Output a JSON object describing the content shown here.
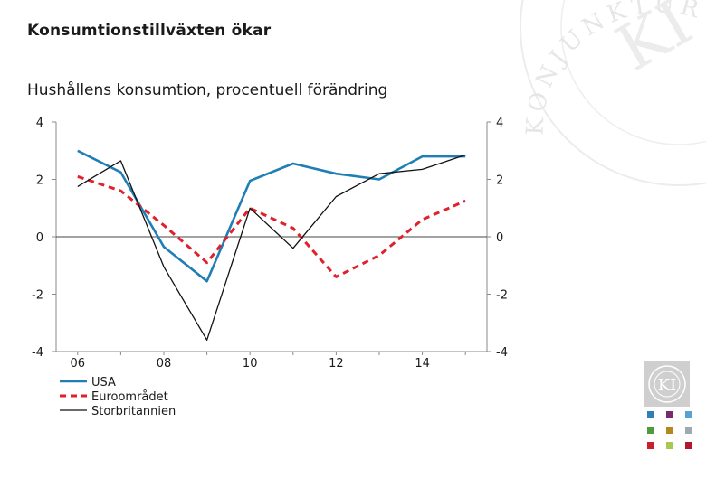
{
  "page": {
    "title": "Konsumtionstillväxten ökar",
    "subtitle": "Hushållens konsumtion, procentuell förändring"
  },
  "logo": {
    "watermark_text": "KONJUNKTURINSTITUTET",
    "monogram": "KI"
  },
  "palette": [
    "#2e7fb8",
    "#7a2a6a",
    "#5aa0d0",
    "#4f9a3a",
    "#b08a20",
    "#a0a8b0",
    "#c8202c",
    "#a8c850",
    "#b01830"
  ],
  "chart_data": {
    "type": "line",
    "title": "Hushållens konsumtion, procentuell förändring",
    "x": [
      2006,
      2007,
      2008,
      2009,
      2010,
      2011,
      2012,
      2013,
      2014,
      2015
    ],
    "x_tick_labels": [
      "06",
      "08",
      "10",
      "12",
      "14"
    ],
    "x_tick_values": [
      2006,
      2008,
      2010,
      2012,
      2014
    ],
    "xlim": [
      2005.5,
      2015.5
    ],
    "ylim": [
      -4,
      4
    ],
    "y_ticks": [
      -4,
      -2,
      0,
      2,
      4
    ],
    "y_tick_labels": [
      "-4",
      "-2",
      "0",
      "2",
      "4"
    ],
    "right_axis": true,
    "zero_line": true,
    "legend_position": "bottom-left",
    "series": [
      {
        "name": "USA",
        "color": "#1f7fb5",
        "style": "solid",
        "values": [
          3.0,
          2.25,
          -0.35,
          -1.55,
          1.95,
          2.55,
          2.2,
          2.0,
          2.8,
          2.8
        ]
      },
      {
        "name": "Euroområdet",
        "color": "#e0212b",
        "style": "dashed",
        "values": [
          2.1,
          1.6,
          0.4,
          -0.9,
          1.0,
          0.3,
          -1.4,
          -0.65,
          0.6,
          1.25
        ]
      },
      {
        "name": "Storbritannien",
        "color": "#111111",
        "style": "solid",
        "values": [
          1.75,
          2.65,
          -1.05,
          -3.6,
          1.0,
          -0.4,
          1.4,
          2.2,
          2.35,
          2.85
        ]
      }
    ]
  }
}
